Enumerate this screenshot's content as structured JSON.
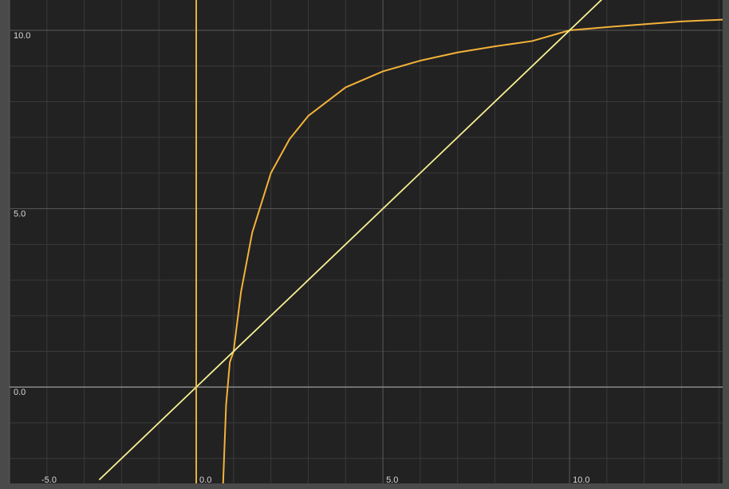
{
  "chart_data": {
    "type": "line",
    "title": "",
    "xlabel": "",
    "ylabel": "",
    "xlim": [
      -5.0,
      14.1
    ],
    "ylim": [
      -2.7,
      10.85
    ],
    "grid": true,
    "grid_minor_step": 1,
    "grid_major_step": 5,
    "x_tick_labels": [
      "-5.0",
      "0.0",
      "5.0",
      "10.0"
    ],
    "y_tick_labels": [
      "0.0",
      "5.0",
      "10.0"
    ],
    "x_ticks": [
      -5.0,
      0.0,
      5.0,
      10.0
    ],
    "y_ticks": [
      0.0,
      5.0,
      10.0
    ],
    "colors": {
      "background": "#222222",
      "frame": "#4a4a4a",
      "grid_minor": "#3a3a3a",
      "grid_major": "#5a5a5a",
      "axis": "#888888",
      "curve": "#f3b23a",
      "identity_line": "#f6f094",
      "vertical_line": "#f7c23c"
    },
    "series": [
      {
        "kind": "curve",
        "color": "#f3b23a",
        "x": [
          0.72,
          0.8,
          0.9,
          1.0,
          1.2,
          1.5,
          2.0,
          2.5,
          3.0,
          4.0,
          5.0,
          6.0,
          7.0,
          8.0,
          9.0,
          10.0,
          11.0,
          12.0,
          13.0,
          14.1
        ],
        "y": [
          -2.7,
          -0.5,
          0.7,
          1.0,
          2.67,
          4.33,
          6.0,
          6.95,
          7.6,
          8.4,
          8.85,
          9.15,
          9.38,
          9.55,
          9.7,
          10.0,
          10.09,
          10.17,
          10.25,
          10.3
        ]
      },
      {
        "kind": "identity_line",
        "color": "#f6f094",
        "x": [
          -2.6,
          10.95
        ],
        "y": [
          -2.6,
          10.95
        ]
      },
      {
        "kind": "vertical_line",
        "color": "#f7c23c",
        "x": [
          0.0,
          0.0
        ],
        "y": [
          -2.7,
          10.85
        ]
      }
    ]
  }
}
